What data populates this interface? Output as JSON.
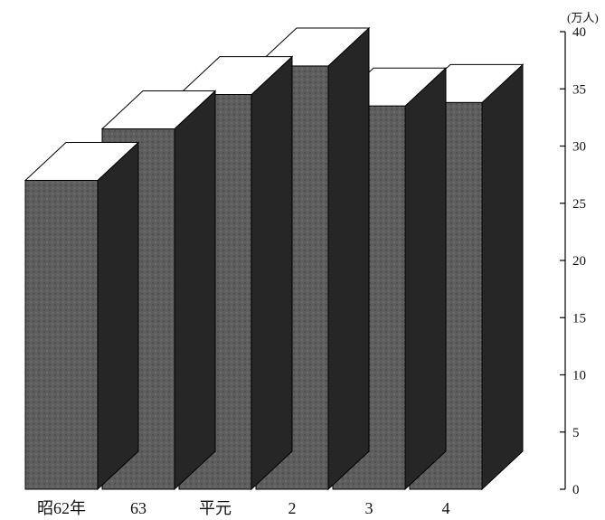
{
  "chart_data": {
    "type": "bar",
    "categories": [
      "昭62年",
      "63",
      "平元",
      "2",
      "3",
      "4"
    ],
    "values": [
      27,
      31.5,
      34.5,
      37,
      33.5,
      33.8
    ],
    "unit_label": "(万人)",
    "ylim": [
      0,
      40
    ],
    "yticks": [
      0,
      5,
      10,
      15,
      20,
      25,
      30,
      35,
      40
    ],
    "y_axis_side": "right",
    "grid": false,
    "style": "3d-columns",
    "colors": {
      "front": "#5e5e5e",
      "side": "#262626",
      "top": "#ffffff",
      "top_back_bar": "#0a0a0a",
      "edge": "#000000"
    }
  }
}
